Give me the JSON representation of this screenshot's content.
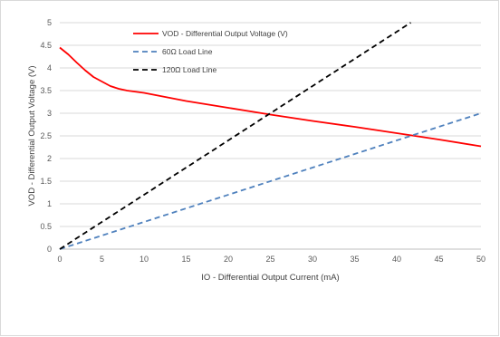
{
  "chart_data": {
    "type": "line",
    "xlabel": "IO - Differential Output Current (mA)",
    "ylabel": "VOD - Differential Output Voltage (V)",
    "xlim": [
      0,
      50
    ],
    "ylim": [
      0,
      5
    ],
    "xticks": [
      "0",
      "5",
      "10",
      "15",
      "20",
      "25",
      "30",
      "35",
      "40",
      "45",
      "50"
    ],
    "yticks": [
      "0",
      "0.5",
      "1",
      "1.5",
      "2",
      "2.5",
      "3",
      "3.5",
      "4",
      "4.5",
      "5"
    ],
    "grid": "horizontal",
    "legend": "top-center",
    "series": [
      {
        "name": "VOD - Differential Output Voltage (V)",
        "color": "#ff0000",
        "style": "solid",
        "x": [
          0,
          1,
          2,
          3,
          4,
          5,
          6,
          7,
          8,
          10,
          15,
          20,
          25,
          30,
          35,
          40,
          45,
          50
        ],
        "y": [
          4.45,
          4.3,
          4.12,
          3.95,
          3.8,
          3.7,
          3.6,
          3.54,
          3.5,
          3.45,
          3.27,
          3.12,
          2.97,
          2.83,
          2.7,
          2.56,
          2.42,
          2.27
        ]
      },
      {
        "name": "60Ω Load Line",
        "color": "#4f81bd",
        "style": "dashed",
        "x": [
          0,
          50
        ],
        "y": [
          0,
          3.0
        ]
      },
      {
        "name": "120Ω Load Line",
        "color": "#000000",
        "style": "dashed",
        "x": [
          0,
          41.67
        ],
        "y": [
          0,
          5.0
        ]
      }
    ]
  }
}
